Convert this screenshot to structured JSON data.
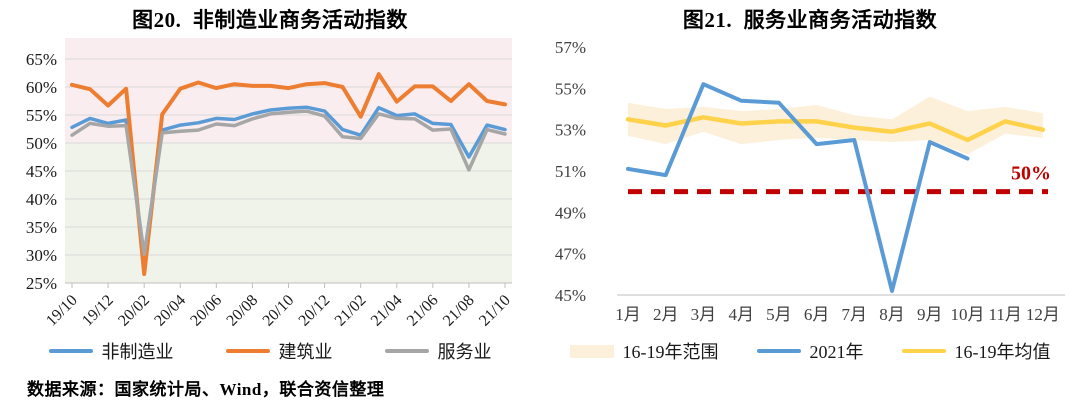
{
  "page": {
    "background": "#FFFFFF"
  },
  "source_note": "数据来源：国家统计局、Wind，联合资信整理",
  "colors": {
    "blue": "#5B9BD5",
    "orange": "#ED7D31",
    "gray": "#A6A6A6",
    "yellow": "#FFD24C",
    "band_cream": "#FCF0DB",
    "red": "#C00000",
    "above50_bg": "#FAEDEF",
    "below50_bg": "#F0F3EA",
    "gridline": "#D9D9D9",
    "axis": "#BFBFBF"
  },
  "chart_data": [
    {
      "type": "line",
      "title": "图20.  非制造业商务活动指数",
      "xlabel": "",
      "ylabel": "",
      "ylim": [
        25,
        68.75
      ],
      "grid": true,
      "yticks": [
        {
          "label": "65%",
          "value": 65
        },
        {
          "label": "60%",
          "value": 60
        },
        {
          "label": "55%",
          "value": 55
        },
        {
          "label": "50%",
          "value": 50
        },
        {
          "label": "45%",
          "value": 45
        },
        {
          "label": "40%",
          "value": 40
        },
        {
          "label": "35%",
          "value": 35
        },
        {
          "label": "30%",
          "value": 30
        },
        {
          "label": "25%",
          "value": 25
        }
      ],
      "categories": [
        "19/10",
        "19/11",
        "19/12",
        "20/01",
        "20/02",
        "20/03",
        "20/04",
        "20/05",
        "20/06",
        "20/07",
        "20/08",
        "20/09",
        "20/10",
        "20/11",
        "20/12",
        "21/01",
        "21/02",
        "21/03",
        "21/04",
        "21/05",
        "21/06",
        "21/07",
        "21/08",
        "21/09",
        "21/10"
      ],
      "x_label_every": 2,
      "series": [
        {
          "name": "非制造业",
          "color": "#5B9BD5",
          "width": 3.5,
          "values": [
            52.8,
            54.4,
            53.5,
            54.1,
            29.6,
            52.3,
            53.2,
            53.6,
            54.4,
            54.2,
            55.2,
            55.9,
            56.2,
            56.4,
            55.7,
            52.4,
            51.4,
            56.3,
            54.9,
            55.2,
            53.5,
            53.3,
            47.5,
            53.2,
            52.4
          ]
        },
        {
          "name": "建筑业",
          "color": "#ED7D31",
          "width": 4,
          "values": [
            60.4,
            59.6,
            56.7,
            59.7,
            26.6,
            55.1,
            59.7,
            60.8,
            59.8,
            60.5,
            60.2,
            60.2,
            59.8,
            60.5,
            60.7,
            60.0,
            54.7,
            62.3,
            57.4,
            60.1,
            60.1,
            57.5,
            60.5,
            57.5,
            56.9
          ]
        },
        {
          "name": "服务业",
          "color": "#A6A6A6",
          "width": 3.5,
          "values": [
            51.4,
            53.5,
            53.0,
            53.1,
            30.1,
            51.8,
            52.1,
            52.3,
            53.4,
            53.1,
            54.3,
            55.2,
            55.5,
            55.7,
            54.8,
            51.1,
            50.8,
            55.2,
            54.4,
            54.3,
            52.3,
            52.5,
            45.2,
            52.4,
            51.6
          ]
        }
      ],
      "background_bands": [
        {
          "from": 50,
          "to": 68.75,
          "color": "#FAEDEF",
          "meaning": "above-50-expansion"
        },
        {
          "from": 25,
          "to": 50,
          "color": "#F0F3EA",
          "meaning": "below-50-contraction"
        }
      ],
      "legend": [
        {
          "label": "非制造业",
          "color": "#5B9BD5",
          "type": "line"
        },
        {
          "label": "建筑业",
          "color": "#ED7D31",
          "type": "line"
        },
        {
          "label": "服务业",
          "color": "#A6A6A6",
          "type": "line"
        }
      ],
      "legend_position": "bottom"
    },
    {
      "type": "line",
      "title": "图21.  服务业商务活动指数",
      "xlabel": "",
      "ylabel": "",
      "ylim": [
        45,
        57.4
      ],
      "grid": false,
      "yticks": [
        {
          "label": "57%",
          "value": 57
        },
        {
          "label": "55%",
          "value": 55
        },
        {
          "label": "53%",
          "value": 53
        },
        {
          "label": "51%",
          "value": 51
        },
        {
          "label": "49%",
          "value": 49
        },
        {
          "label": "47%",
          "value": 47
        },
        {
          "label": "45%",
          "value": 45
        }
      ],
      "categories": [
        "1月",
        "2月",
        "3月",
        "4月",
        "5月",
        "6月",
        "7月",
        "8月",
        "9月",
        "10月",
        "11月",
        "12月"
      ],
      "x_label_every": 1,
      "series": [
        {
          "name": "16-19年范围",
          "type": "band",
          "color": "#FCF0DB",
          "upper": [
            54.3,
            54.0,
            54.1,
            53.9,
            54.0,
            54.2,
            53.7,
            53.5,
            54.6,
            53.9,
            54.1,
            53.8
          ],
          "lower": [
            52.7,
            52.3,
            52.9,
            52.3,
            52.5,
            52.6,
            52.5,
            52.4,
            52.5,
            51.8,
            52.8,
            52.6
          ]
        },
        {
          "name": "2021年",
          "type": "line",
          "color": "#5B9BD5",
          "width": 4,
          "values": [
            51.1,
            50.8,
            55.2,
            54.4,
            54.3,
            52.3,
            52.5,
            45.2,
            52.4,
            51.6
          ]
        },
        {
          "name": "16-19年均值",
          "type": "line",
          "color": "#FFD24C",
          "width": 4.5,
          "values": [
            53.5,
            53.2,
            53.6,
            53.3,
            53.4,
            53.4,
            53.1,
            52.9,
            53.3,
            52.5,
            53.4,
            53.0
          ]
        }
      ],
      "reference_line": {
        "value": 50,
        "label": "50%",
        "color": "#C00000",
        "style": "dashed"
      },
      "legend": [
        {
          "label": "16-19年范围",
          "color": "#FCF0DB",
          "type": "band"
        },
        {
          "label": "2021年",
          "color": "#5B9BD5",
          "type": "line"
        },
        {
          "label": "16-19年均值",
          "color": "#FFD24C",
          "type": "line"
        }
      ],
      "legend_position": "bottom"
    }
  ]
}
